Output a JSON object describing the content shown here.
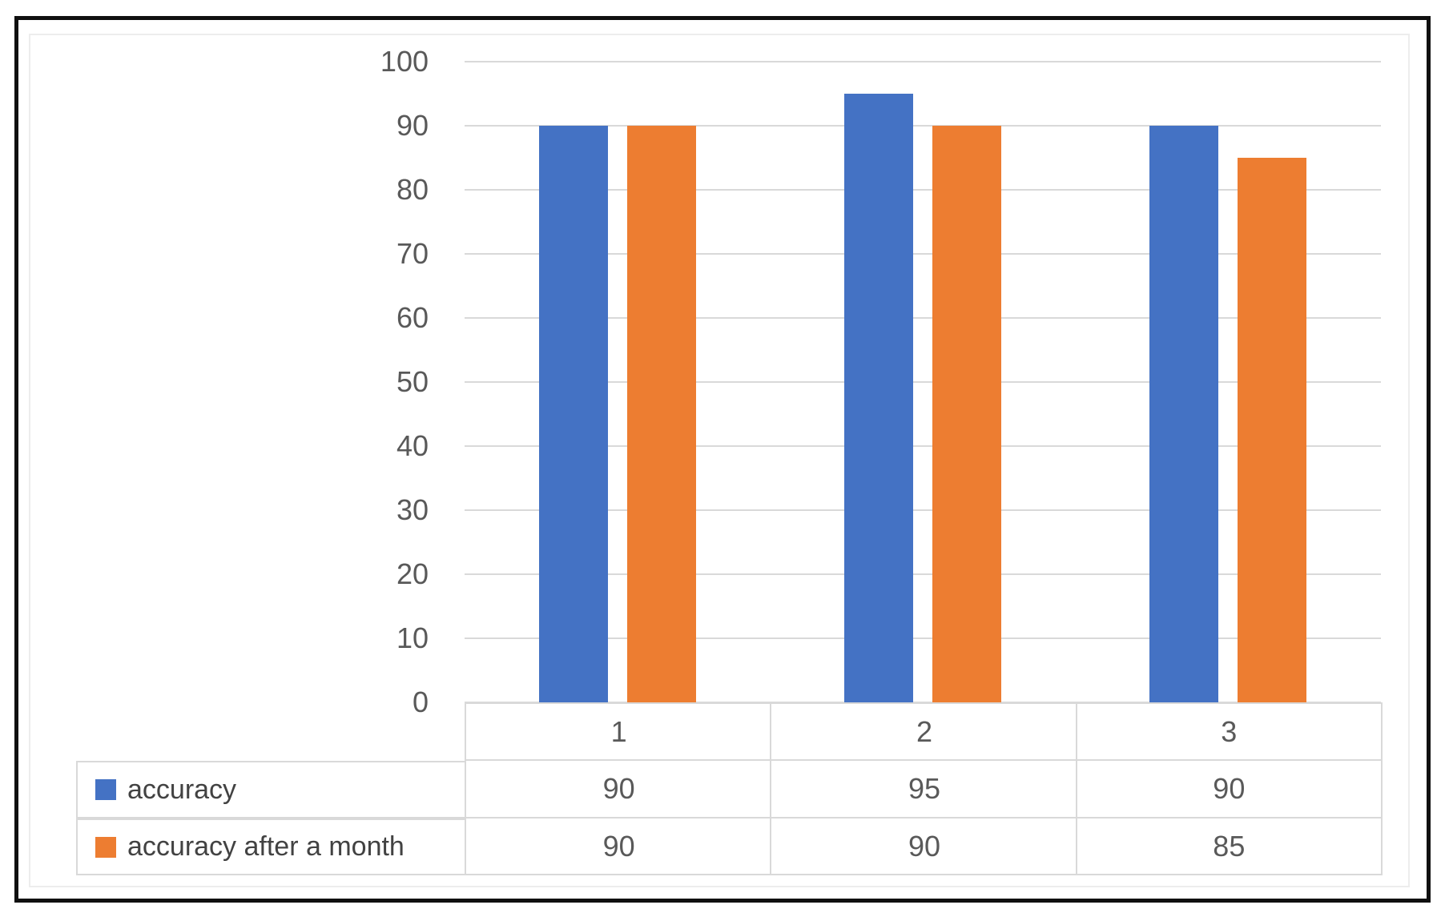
{
  "chart_data": {
    "type": "bar",
    "title": "",
    "xlabel": "",
    "ylabel": "",
    "categories": [
      "1",
      "2",
      "3"
    ],
    "series": [
      {
        "name": "accuracy",
        "color": "#4472C4",
        "values": [
          90,
          95,
          90
        ]
      },
      {
        "name": "accuracy after a month",
        "color": "#ED7D31",
        "values": [
          90,
          90,
          85
        ]
      }
    ],
    "ylim": [
      0,
      100
    ],
    "ytick_interval": 10,
    "yticks": [
      0,
      10,
      20,
      30,
      40,
      50,
      60,
      70,
      80,
      90,
      100
    ],
    "grid": true,
    "legend_position": "data-table-left-column",
    "data_table_shown": true
  },
  "colors": {
    "series_1": "#4472C4",
    "series_2": "#ED7D31",
    "gridline": "#D9D9D9",
    "table_border": "#D9D9D9",
    "axis_text": "#595959",
    "legend_text": "#424242",
    "outer_border": "#101010",
    "background": "#FFFFFF"
  }
}
